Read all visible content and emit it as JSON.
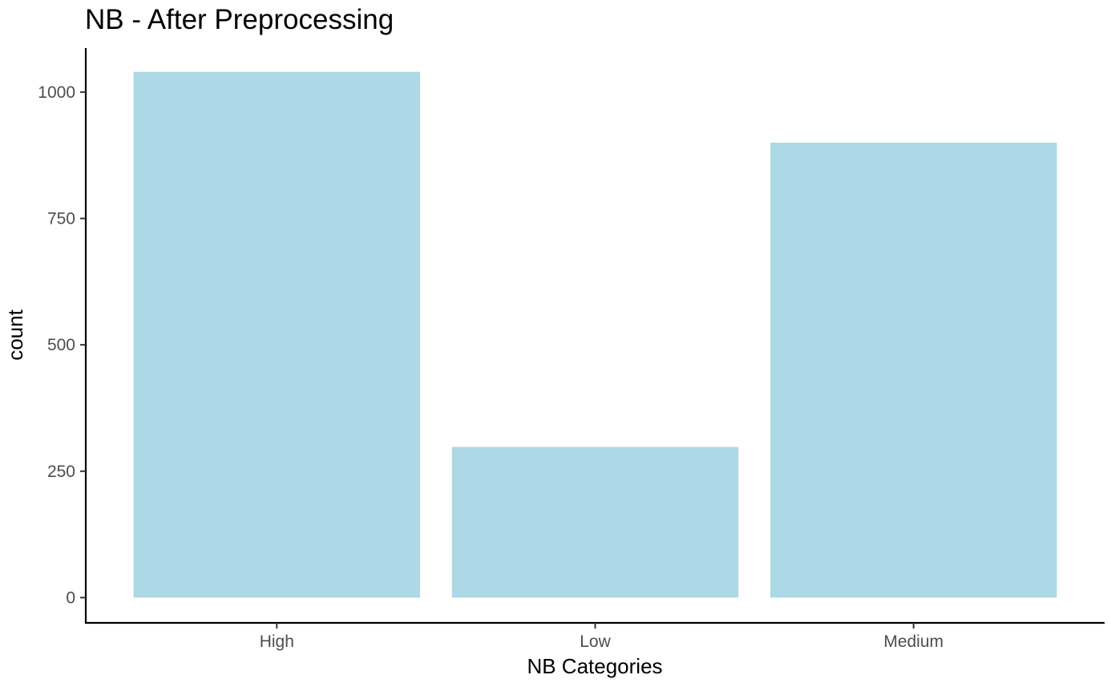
{
  "chart_data": {
    "type": "bar",
    "title": "NB - After Preprocessing",
    "xlabel": "NB Categories",
    "ylabel": "count",
    "categories": [
      "High",
      "Low",
      "Medium"
    ],
    "values": [
      1040,
      298,
      900
    ],
    "yticks": [
      0,
      250,
      500,
      750,
      1000
    ],
    "ylim": [
      -50,
      1087
    ],
    "bar_color": "#add8e6",
    "grid": false,
    "legend": "none"
  }
}
